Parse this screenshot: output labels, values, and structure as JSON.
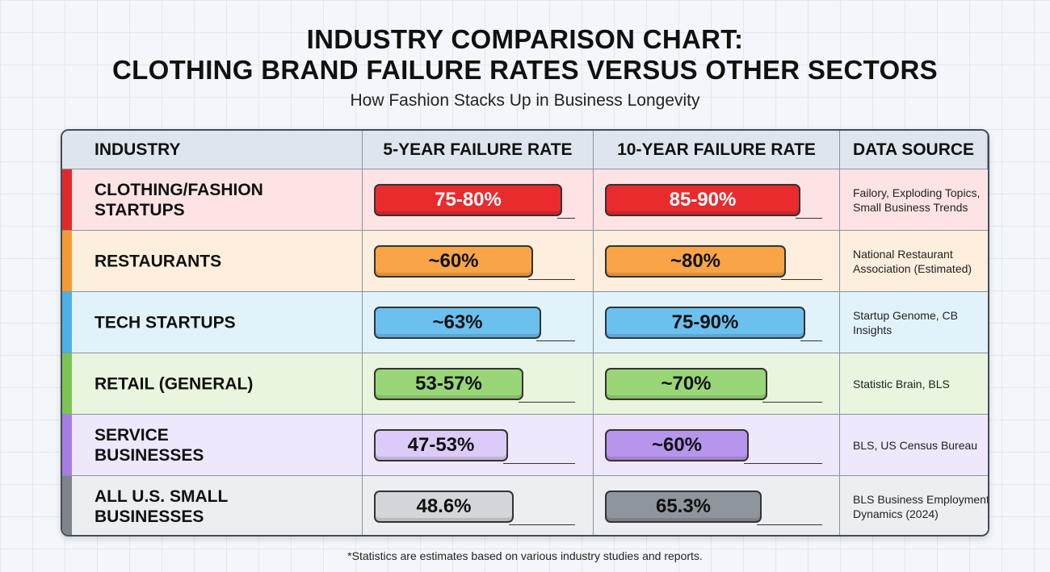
{
  "header": {
    "title_line1": "INDUSTRY COMPARISON CHART:",
    "title_line2": "CLOTHING BRAND FAILURE RATES VERSUS OTHER SECTORS",
    "subtitle": "How Fashion Stacks Up in Business Longevity"
  },
  "table": {
    "columns": [
      "INDUSTRY",
      "5-YEAR FAILURE RATE",
      "10-YEAR FAILURE RATE",
      "DATA SOURCE"
    ],
    "rows": [
      [
        "CLOTHING/FASHION STARTUPS",
        "75-80%",
        "85-90%",
        "Failory, Exploding Topics, Small Business Trends"
      ],
      [
        "RESTAURANTS",
        "~60%",
        "~80%",
        "National Restaurant Association (Estimated)"
      ],
      [
        "TECH STARTUPS",
        "~63%",
        "75-90%",
        "Startup Genome, CB Insights"
      ],
      [
        "RETAIL (GENERAL)",
        "53-57%",
        "~70%",
        "Statistic Brain, BLS"
      ],
      [
        "SERVICE BUSINESSES",
        "47-53%",
        "~60%",
        "BLS, US Census Bureau"
      ],
      [
        "ALL U.S. SMALL BUSINESSES",
        "48.6%",
        "65.3%",
        "BLS Business Employment Dynamics (2024)"
      ]
    ]
  },
  "footnote": "*Statistics are estimates based on various industry studies and reports."
}
